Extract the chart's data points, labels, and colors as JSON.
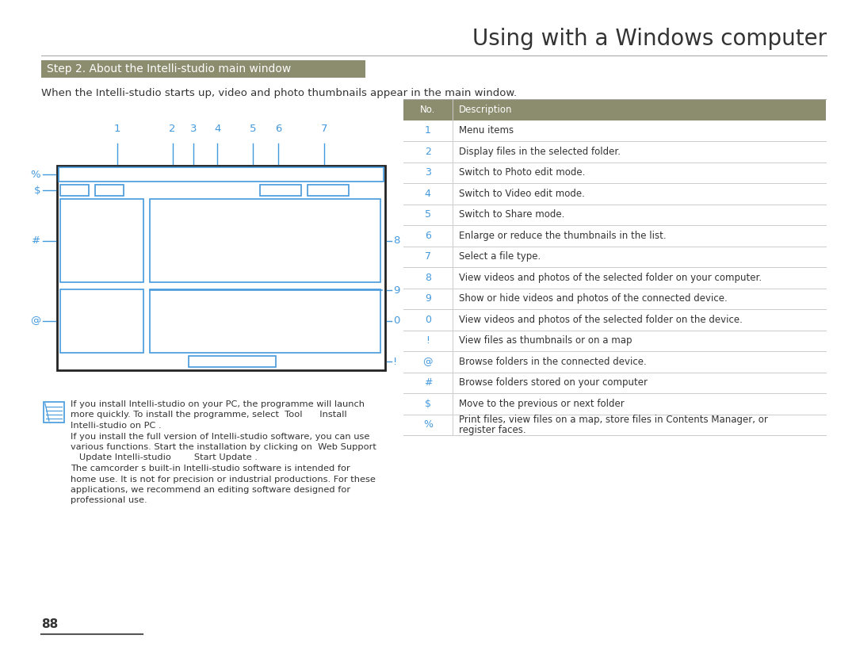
{
  "title": "Using with a Windows computer",
  "section_title": "Step 2. About the Intelli-studio main window",
  "section_bg": "#8C8C6E",
  "intro_text": "When the Intelli-studio starts up, video and photo thumbnails appear in the main window.",
  "blue_color": "#4499DD",
  "table_header_bg": "#8C8C6E",
  "table_rows": [
    [
      "No.",
      "Description"
    ],
    [
      "1",
      "Menu items"
    ],
    [
      "2",
      "Display files in the selected folder."
    ],
    [
      "3",
      "Switch to Photo edit mode."
    ],
    [
      "4",
      "Switch to Video edit mode."
    ],
    [
      "5",
      "Switch to Share mode."
    ],
    [
      "6",
      "Enlarge or reduce the thumbnails in the list."
    ],
    [
      "7",
      "Select a file type."
    ],
    [
      "8",
      "View videos and photos of the selected folder on your computer."
    ],
    [
      "9",
      "Show or hide videos and photos of the connected device."
    ],
    [
      "0",
      "View videos and photos of the selected folder on the device."
    ],
    [
      "!",
      "View files as thumbnails or on a map"
    ],
    [
      "@",
      "Browse folders in the connected device."
    ],
    [
      "#",
      "Browse folders stored on your computer"
    ],
    [
      "$",
      "Move to the previous or next folder"
    ],
    [
      "%",
      "Print files, view files on a map, store files in Contents Manager, or register faces."
    ]
  ],
  "note_lines": [
    "If you install Intelli-studio on your PC, the programme will launch",
    "more quickly. To install the programme, select  Tool      Install",
    "Intelli-studio on PC .",
    "If you install the full version of Intelli-studio software, you can use",
    "various functions. Start the installation by clicking on  Web Support",
    "   Update Intelli-studio        Start Update .",
    "The camcorder s built-in Intelli-studio software is intended for",
    "home use. It is not for precision or industrial productions. For these",
    "applications, we recommend an editing software designed for",
    "professional use."
  ],
  "page_number": "88",
  "diagram_labels_top": [
    "1",
    "2",
    "3",
    "4",
    "5",
    "6",
    "7"
  ],
  "diagram_labels_left": [
    "%",
    "$",
    "#",
    "@"
  ],
  "diagram_labels_right": [
    "8",
    "9",
    "0",
    "!"
  ]
}
